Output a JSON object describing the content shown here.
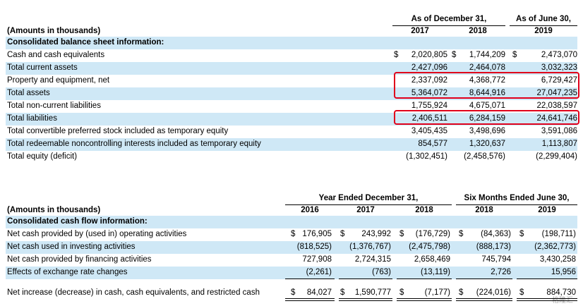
{
  "balance": {
    "header": {
      "amounts_label": "(Amounts in thousands)",
      "group1": "As of December 31,",
      "group2": "As of June 30,",
      "years": [
        "2017",
        "2018",
        "2019"
      ]
    },
    "section_title": "Consolidated balance sheet information:",
    "rows": [
      {
        "label": "Cash and cash equivalents",
        "c1": "$",
        "v1": "2,020,805",
        "c2": "$",
        "v2": "1,744,209",
        "c3": "$",
        "v3": "2,473,070"
      },
      {
        "label": "Total current assets",
        "c1": "",
        "v1": "2,427,096",
        "c2": "",
        "v2": "2,464,078",
        "c3": "",
        "v3": "3,032,323"
      },
      {
        "label": "Property and equipment, net",
        "c1": "",
        "v1": "2,337,092",
        "c2": "",
        "v2": "4,368,772",
        "c3": "",
        "v3": "6,729,427"
      },
      {
        "label": "Total assets",
        "c1": "",
        "v1": "5,364,072",
        "c2": "",
        "v2": "8,644,916",
        "c3": "",
        "v3": "27,047,235"
      },
      {
        "label": "Total non-current liabilities",
        "c1": "",
        "v1": "1,755,924",
        "c2": "",
        "v2": "4,675,071",
        "c3": "",
        "v3": "22,038,597"
      },
      {
        "label": "Total liabilities",
        "c1": "",
        "v1": "2,406,511",
        "c2": "",
        "v2": "6,284,159",
        "c3": "",
        "v3": "24,641,746"
      },
      {
        "label": "Total convertible preferred stock included as temporary equity",
        "c1": "",
        "v1": "3,405,435",
        "c2": "",
        "v2": "3,498,696",
        "c3": "",
        "v3": "3,591,086"
      },
      {
        "label": "Total redeemable noncontrolling interests included as temporary equity",
        "c1": "",
        "v1": "854,577",
        "c2": "",
        "v2": "1,320,637",
        "c3": "",
        "v3": "1,113,807"
      },
      {
        "label": "Total equity (deficit)",
        "c1": "",
        "v1": "(1,302,451)",
        "c2": "",
        "v2": "(2,458,576)",
        "c3": "",
        "v3": "(2,299,404)"
      }
    ]
  },
  "cashflow": {
    "header": {
      "amounts_label": "(Amounts in thousands)",
      "group1": "Year Ended December 31,",
      "group2": "Six Months Ended June 30,",
      "years": [
        "2016",
        "2017",
        "2018",
        "2018",
        "2019"
      ]
    },
    "section_title": "Consolidated cash flow information:",
    "rows": [
      {
        "label": "Net cash provided by (used in) operating activities",
        "cells": [
          [
            "$",
            "176,905"
          ],
          [
            "$",
            "243,992"
          ],
          [
            "$",
            "(176,729)"
          ],
          [
            "$",
            "(84,363)"
          ],
          [
            "$",
            "(198,711)"
          ]
        ]
      },
      {
        "label": "Net cash used in investing activities",
        "cells": [
          [
            "",
            "(818,525)"
          ],
          [
            "",
            "(1,376,767)"
          ],
          [
            "",
            "(2,475,798)"
          ],
          [
            "",
            "(888,173)"
          ],
          [
            "",
            "(2,362,773)"
          ]
        ]
      },
      {
        "label": "Net cash provided by financing activities",
        "cells": [
          [
            "",
            "727,908"
          ],
          [
            "",
            "2,724,315"
          ],
          [
            "",
            "2,658,469"
          ],
          [
            "",
            "745,794"
          ],
          [
            "",
            "3,430,258"
          ]
        ]
      },
      {
        "label": "Effects of exchange rate changes",
        "cells": [
          [
            "",
            "(2,261)"
          ],
          [
            "",
            "(763)"
          ],
          [
            "",
            "(13,119)"
          ],
          [
            "",
            "2,726"
          ],
          [
            "",
            "15,956"
          ]
        ]
      },
      {
        "label": "Net increase (decrease) in cash, cash equivalents, and restricted cash",
        "cells": [
          [
            "$",
            "84,027"
          ],
          [
            "$",
            "1,590,777"
          ],
          [
            "$",
            "(7,177)"
          ],
          [
            "$",
            "(224,016)"
          ],
          [
            "$",
            "884,730"
          ]
        ]
      }
    ]
  },
  "watermark": "格隆汇"
}
